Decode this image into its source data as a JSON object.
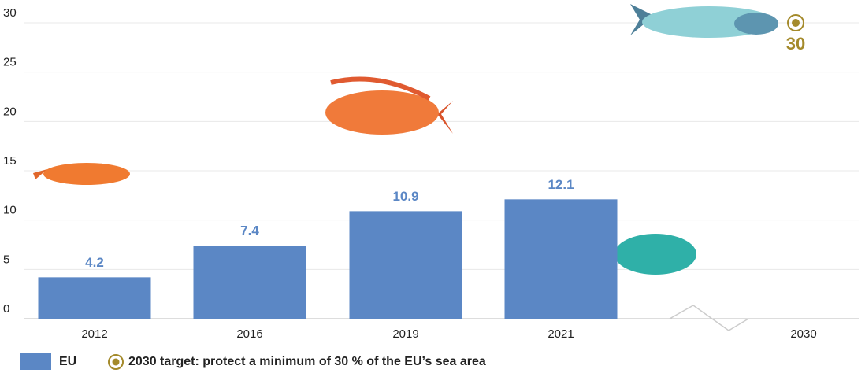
{
  "chart_data": {
    "type": "bar",
    "categories": [
      "2012",
      "2016",
      "2019",
      "2021",
      "2030"
    ],
    "series": [
      {
        "name": "EU",
        "color": "#5b87c5",
        "values": [
          4.2,
          7.4,
          10.9,
          12.1,
          null
        ]
      },
      {
        "name": "2030 target: protect a minimum of 30 % of the EU’s sea area",
        "color": "#a48a2b",
        "values": [
          null,
          null,
          null,
          null,
          30
        ]
      }
    ],
    "ylim": [
      0,
      30
    ],
    "yticks": [
      0,
      5,
      10,
      15,
      20,
      25,
      30
    ],
    "grid": true
  }
}
